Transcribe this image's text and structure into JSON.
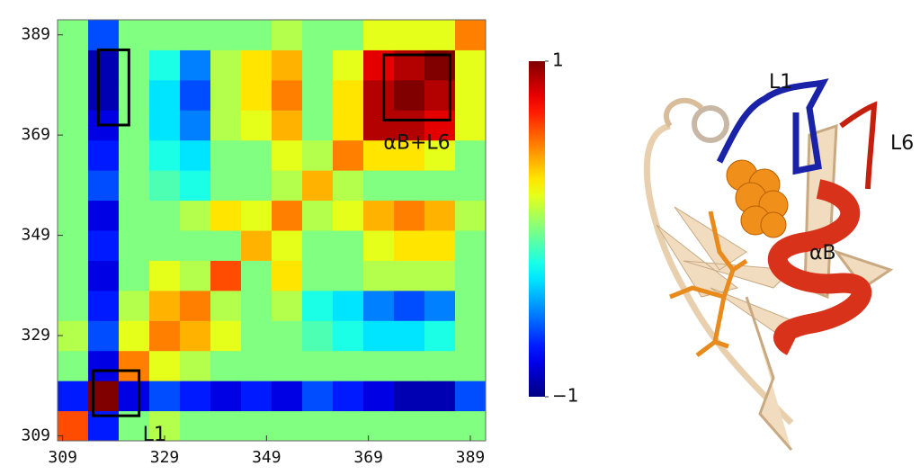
{
  "chart_data": {
    "type": "heatmap",
    "bins": [
      308,
      314,
      320,
      326,
      332,
      338,
      344,
      350,
      356,
      362,
      368,
      374,
      380,
      386,
      392
    ],
    "values": [
      [
        0.6,
        -0.7,
        0,
        0.1,
        0,
        0,
        0,
        0,
        0,
        0,
        0,
        0,
        0,
        0
      ],
      [
        -0.7,
        1,
        -0.8,
        -0.6,
        -0.7,
        -0.8,
        -0.7,
        -0.8,
        -0.6,
        -0.7,
        -0.8,
        -0.9,
        -0.9,
        -0.6
      ],
      [
        0,
        -0.8,
        0.5,
        0.2,
        0.1,
        0,
        0,
        0,
        0,
        0,
        0,
        0,
        0,
        0
      ],
      [
        0.1,
        -0.6,
        0.2,
        0.5,
        0.4,
        0.2,
        0,
        0,
        -0.1,
        -0.2,
        -0.3,
        -0.3,
        -0.2,
        0
      ],
      [
        0,
        -0.7,
        0.1,
        0.4,
        0.5,
        0.1,
        0,
        0.1,
        -0.2,
        -0.3,
        -0.5,
        -0.6,
        -0.5,
        0
      ],
      [
        0,
        -0.8,
        0,
        0.2,
        0.1,
        0.6,
        0,
        0.3,
        0,
        0,
        0.1,
        0.1,
        0.1,
        0
      ],
      [
        0,
        -0.7,
        0,
        0,
        0,
        0,
        0.4,
        0.2,
        0,
        0,
        0.2,
        0.3,
        0.3,
        0
      ],
      [
        0,
        -0.8,
        0,
        0,
        0.1,
        0.3,
        0.2,
        0.5,
        0.1,
        0.2,
        0.4,
        0.5,
        0.4,
        0.1
      ],
      [
        0,
        -0.6,
        0,
        -0.1,
        -0.2,
        0,
        0,
        0.1,
        0.4,
        0.1,
        0,
        0,
        0,
        0
      ],
      [
        0,
        -0.7,
        0,
        -0.2,
        -0.3,
        0,
        0,
        0.2,
        0.1,
        0.5,
        0.3,
        0.3,
        0.2,
        0
      ],
      [
        0,
        -0.8,
        0,
        -0.3,
        -0.5,
        0.1,
        0.2,
        0.4,
        0,
        0.3,
        0.9,
        0.9,
        0.8,
        0.2
      ],
      [
        0,
        -0.9,
        0,
        -0.3,
        -0.6,
        0.1,
        0.3,
        0.5,
        0,
        0.3,
        0.9,
        1,
        0.9,
        0.2
      ],
      [
        0,
        -0.9,
        0,
        -0.2,
        -0.5,
        0.1,
        0.3,
        0.4,
        0,
        0.2,
        0.8,
        0.9,
        1,
        0.2
      ],
      [
        0,
        -0.6,
        0,
        0,
        0,
        0,
        0,
        0.1,
        0,
        0,
        0.2,
        0.2,
        0.2,
        0.5
      ]
    ],
    "xlim": [
      308,
      392
    ],
    "ylim": [
      308,
      392
    ],
    "xticks": [
      309,
      329,
      349,
      369,
      389
    ],
    "yticks": [
      309,
      329,
      349,
      369,
      389
    ],
    "zlim": [
      -1,
      1
    ],
    "colorbar_ticks": [
      1,
      {
        "value": -1,
        "label": "−1"
      }
    ],
    "colormap": "jet",
    "boxes": [
      {
        "text": "L1",
        "xrange": [
          315,
          324
        ],
        "yrange": [
          313,
          322
        ]
      },
      {
        "xrange": [
          316,
          322
        ],
        "yrange": [
          371,
          386
        ]
      },
      {
        "text": "αB+L6",
        "xrange": [
          372,
          385
        ],
        "yrange": [
          372,
          385
        ]
      }
    ]
  },
  "structure": {
    "labels": [
      "L1",
      "L6",
      "αB"
    ]
  }
}
